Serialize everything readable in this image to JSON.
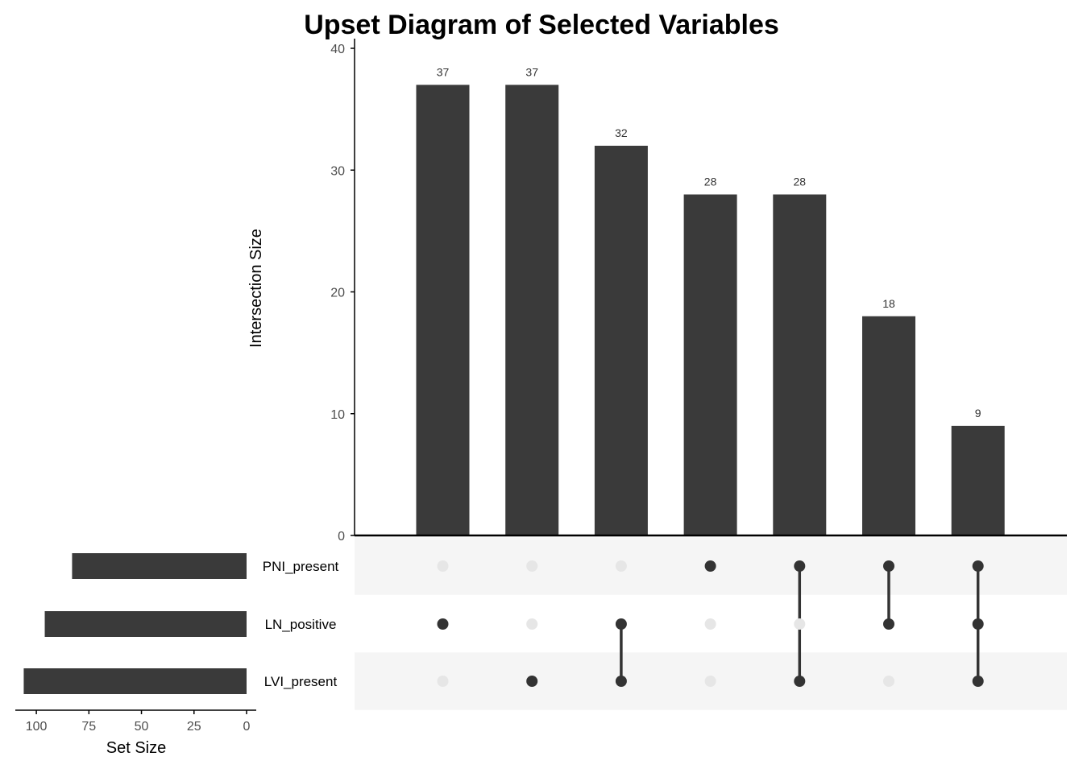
{
  "chart_data": {
    "type": "bar",
    "title": "Upset Diagram of Selected Variables",
    "ylabel": "Intersection Size",
    "xlabel": "",
    "ylim": [
      0,
      40
    ],
    "yticks": [
      0,
      10,
      20,
      30,
      40
    ],
    "intersection_values": [
      37,
      37,
      32,
      28,
      28,
      18,
      9
    ],
    "sets": [
      "PNI_present",
      "LN_positive",
      "LVI_present"
    ],
    "intersections": [
      [
        "LN_positive"
      ],
      [
        "LVI_present"
      ],
      [
        "LN_positive",
        "LVI_present"
      ],
      [
        "PNI_present"
      ],
      [
        "PNI_present",
        "LVI_present"
      ],
      [
        "PNI_present",
        "LN_positive"
      ],
      [
        "PNI_present",
        "LN_positive",
        "LVI_present"
      ]
    ],
    "set_sizes": [
      83,
      96,
      106
    ],
    "set_size_label": "Set Size",
    "set_size_xlim": [
      0,
      110
    ],
    "set_size_ticks": [
      100,
      75,
      50,
      25,
      0
    ],
    "grid": false,
    "colors": {
      "bar": "#3a3a3a",
      "dot_active": "#333333",
      "dot_inactive": "#e6e6e6",
      "stripe": "#f5f5f5",
      "axis": "#000000",
      "tick_label": "#4d4d4d"
    }
  }
}
